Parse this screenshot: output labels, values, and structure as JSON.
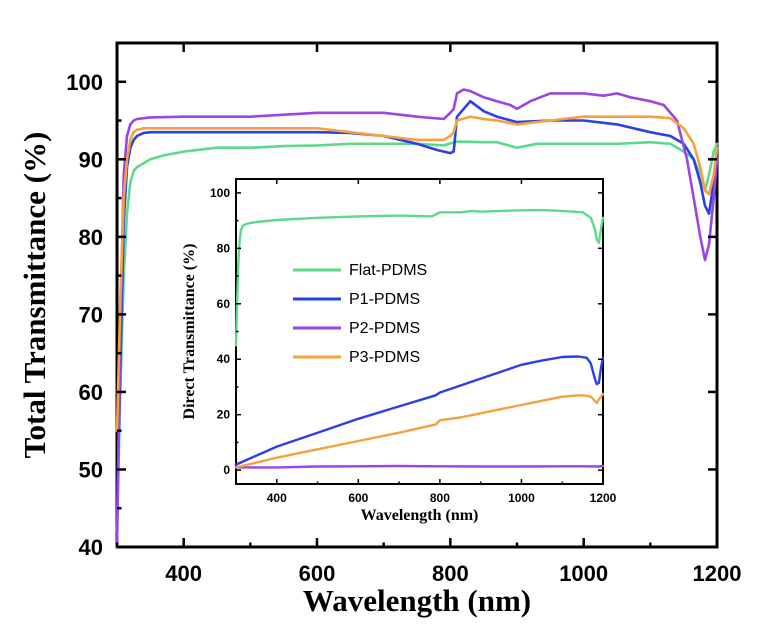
{
  "chart_data": [
    {
      "type": "line",
      "title": "",
      "xlabel": "Wavelength (nm)",
      "ylabel": "Total Transmittance (%)",
      "xlim": [
        300,
        1200
      ],
      "ylim": [
        40,
        105
      ],
      "x_ticks": [
        400,
        600,
        800,
        1000,
        1200
      ],
      "y_ticks": [
        40,
        50,
        60,
        70,
        80,
        90,
        100
      ],
      "grid": false,
      "series": [
        {
          "name": "Flat-PDMS",
          "color": "#5ed98a",
          "x": [
            300,
            305,
            310,
            315,
            320,
            325,
            330,
            340,
            350,
            370,
            400,
            450,
            500,
            550,
            600,
            650,
            700,
            750,
            790,
            810,
            850,
            870,
            900,
            930,
            950,
            1000,
            1050,
            1100,
            1130,
            1150,
            1165,
            1175,
            1182,
            1188,
            1195,
            1200
          ],
          "y": [
            42,
            60,
            75,
            83,
            87,
            88.5,
            89,
            89.5,
            90,
            90.5,
            91,
            91.5,
            91.5,
            91.7,
            91.8,
            92,
            92,
            92,
            91.8,
            92.3,
            92.2,
            92.2,
            91.5,
            92,
            92,
            92,
            92,
            92.2,
            92,
            91,
            90,
            88,
            86,
            88,
            91,
            92
          ]
        },
        {
          "name": "P1-PDMS",
          "color": "#2b3fe6",
          "x": [
            300,
            305,
            310,
            315,
            320,
            325,
            330,
            340,
            350,
            400,
            500,
            600,
            650,
            700,
            750,
            780,
            800,
            805,
            810,
            830,
            850,
            870,
            900,
            950,
            1000,
            1050,
            1100,
            1130,
            1150,
            1165,
            1175,
            1182,
            1188,
            1195,
            1200
          ],
          "y": [
            44,
            63,
            82,
            89,
            91.5,
            92.5,
            93,
            93.4,
            93.5,
            93.5,
            93.5,
            93.5,
            93.4,
            93,
            92,
            91.2,
            90.8,
            91,
            95.5,
            97.5,
            96.2,
            95.5,
            94.8,
            95,
            95,
            94.5,
            93.5,
            93,
            92,
            90,
            87,
            84,
            83,
            87,
            91
          ]
        },
        {
          "name": "P2-PDMS",
          "color": "#9a45e6",
          "x": [
            300,
            305,
            310,
            315,
            320,
            325,
            330,
            340,
            350,
            400,
            500,
            600,
            650,
            700,
            750,
            790,
            800,
            805,
            810,
            820,
            830,
            850,
            870,
            890,
            900,
            920,
            950,
            1000,
            1030,
            1050,
            1070,
            1100,
            1120,
            1140,
            1155,
            1165,
            1175,
            1182,
            1188,
            1195,
            1200
          ],
          "y": [
            40,
            68,
            88,
            93,
            94.5,
            95,
            95.2,
            95.3,
            95.4,
            95.5,
            95.5,
            96,
            96,
            96,
            95.5,
            95.2,
            96,
            96.5,
            98.5,
            99,
            98.8,
            98,
            97.5,
            97,
            96.5,
            97.5,
            98.5,
            98.5,
            98.2,
            98.5,
            98,
            97.5,
            97,
            95,
            90,
            85,
            80,
            77,
            79,
            85,
            90
          ]
        },
        {
          "name": "P3-PDMS",
          "color": "#f5a13d",
          "x": [
            300,
            305,
            310,
            315,
            320,
            325,
            330,
            340,
            350,
            400,
            500,
            600,
            650,
            700,
            750,
            790,
            800,
            805,
            810,
            830,
            850,
            870,
            900,
            950,
            1000,
            1050,
            1100,
            1130,
            1150,
            1165,
            1175,
            1182,
            1188,
            1195,
            1200
          ],
          "y": [
            55,
            72,
            85,
            90,
            92.5,
            93.5,
            93.8,
            94,
            94,
            94,
            94,
            94,
            93.5,
            93,
            92.5,
            92.5,
            93,
            93.5,
            95,
            95.5,
            95.2,
            95,
            94.5,
            95,
            95.5,
            95.5,
            95.5,
            95.3,
            94,
            92,
            89,
            86,
            85.5,
            88,
            91.5
          ]
        }
      ]
    },
    {
      "type": "line",
      "title": "",
      "xlabel": "Wavelength (nm)",
      "ylabel": "Direct Transmittance (%)",
      "xlim": [
        300,
        1200
      ],
      "ylim": [
        -5,
        105
      ],
      "x_ticks": [
        400,
        600,
        800,
        1000,
        1200
      ],
      "y_ticks": [
        0,
        20,
        40,
        60,
        80,
        100
      ],
      "grid": false,
      "legend": "upper-left",
      "series": [
        {
          "name": "Flat-PDMS",
          "color": "#5ed98a",
          "x": [
            300,
            303,
            306,
            309,
            312,
            316,
            320,
            330,
            350,
            400,
            500,
            600,
            700,
            780,
            800,
            850,
            880,
            900,
            950,
            1000,
            1050,
            1100,
            1150,
            1170,
            1180,
            1185,
            1190,
            1195,
            1200
          ],
          "y": [
            45,
            62,
            75,
            83,
            86.5,
            88,
            88.5,
            89,
            89.5,
            90.2,
            91,
            91.5,
            91.8,
            91.5,
            93,
            93,
            93.5,
            93.2,
            93.5,
            93.7,
            93.8,
            93.5,
            93,
            91,
            87,
            83,
            82,
            87,
            91
          ]
        },
        {
          "name": "P1-PDMS",
          "color": "#2b3fe6",
          "x": [
            300,
            400,
            500,
            600,
            700,
            790,
            800,
            850,
            900,
            950,
            1000,
            1050,
            1100,
            1140,
            1160,
            1170,
            1180,
            1185,
            1190,
            1195,
            1200
          ],
          "y": [
            2,
            8.5,
            13.5,
            18.5,
            23,
            27,
            28,
            30.5,
            33,
            35.5,
            38,
            39.5,
            40.8,
            41,
            40.5,
            38.5,
            33,
            31,
            31.5,
            37,
            40.5
          ]
        },
        {
          "name": "P2-PDMS",
          "color": "#9a45e6",
          "x": [
            300,
            400,
            500,
            600,
            700,
            800,
            900,
            1000,
            1100,
            1150,
            1190,
            1200
          ],
          "y": [
            1,
            1,
            1.3,
            1.4,
            1.5,
            1.4,
            1.3,
            1.3,
            1.4,
            1.4,
            1.3,
            1.5
          ]
        },
        {
          "name": "P3-PDMS",
          "color": "#f5a13d",
          "x": [
            300,
            400,
            500,
            600,
            700,
            790,
            800,
            850,
            900,
            950,
            1000,
            1050,
            1100,
            1140,
            1160,
            1170,
            1180,
            1185,
            1190,
            1195,
            1200
          ],
          "y": [
            1,
            4.5,
            7.5,
            10.5,
            13.5,
            16.5,
            18,
            19,
            20.5,
            22,
            23.5,
            25,
            26.5,
            27,
            26.8,
            26.5,
            25,
            24.2,
            25.5,
            26.5,
            27.5
          ]
        }
      ]
    }
  ]
}
